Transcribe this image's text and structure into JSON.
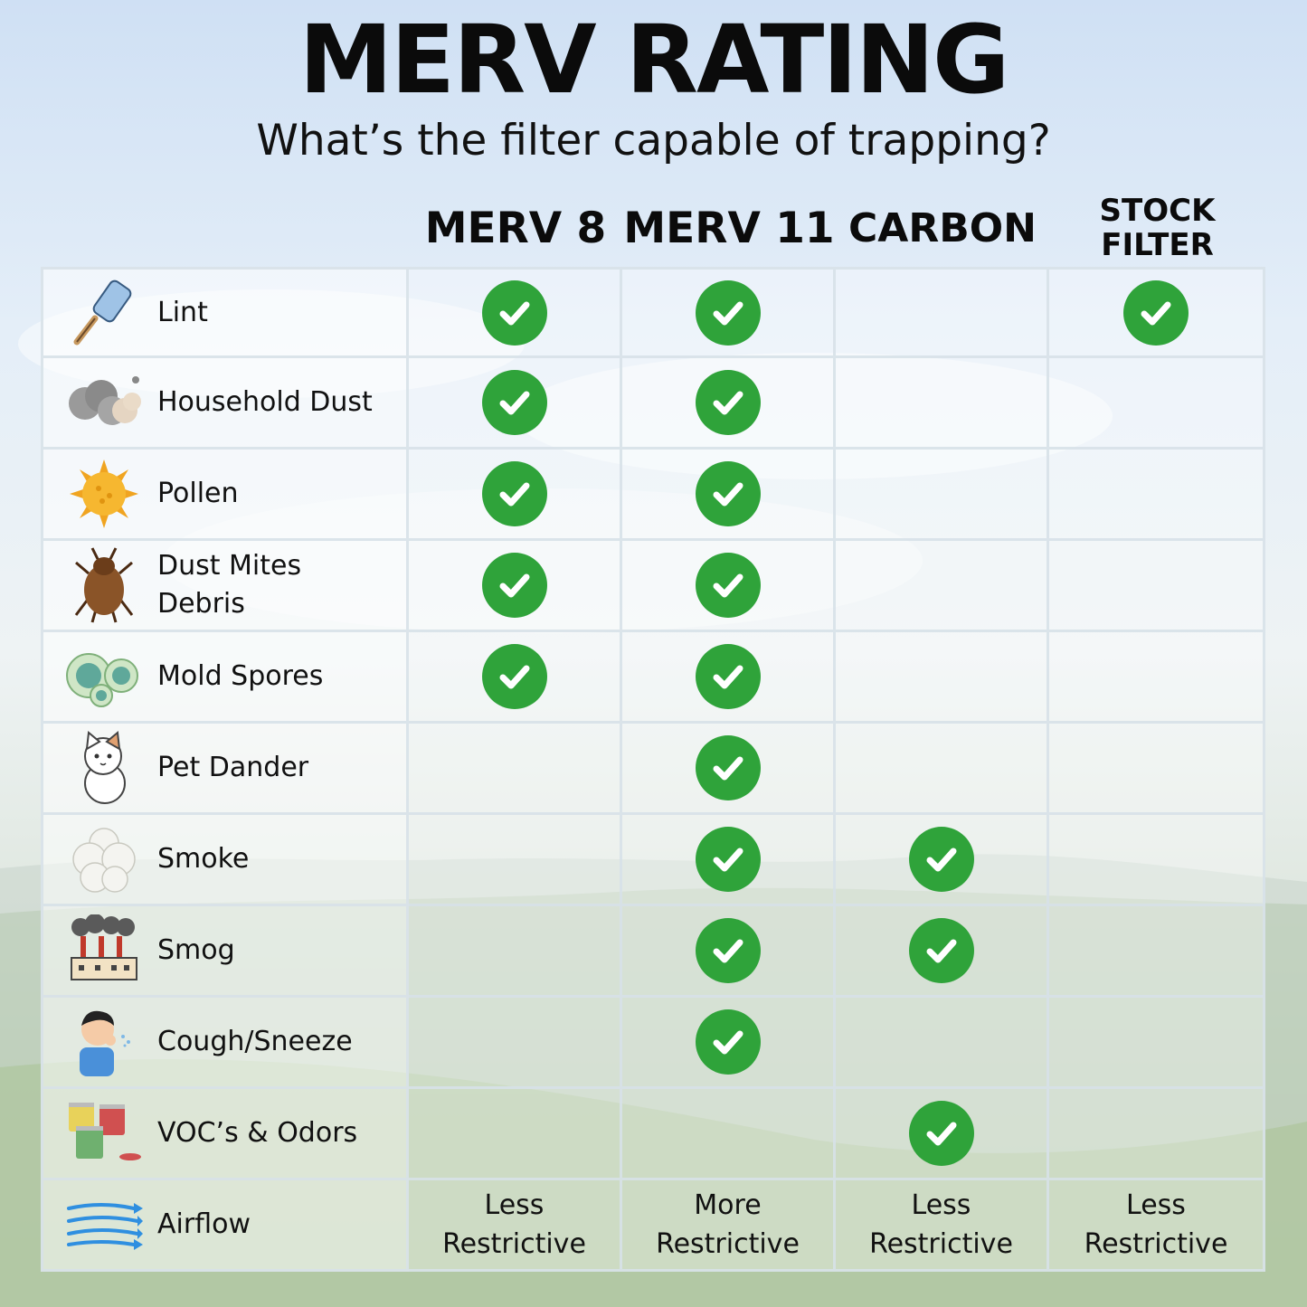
{
  "title": "MERV RATING",
  "subtitle": "What’s the filter capable of trapping?",
  "columns": [
    {
      "label": "MERV 8"
    },
    {
      "label": "MERV 11"
    },
    {
      "label": "CARBON"
    },
    {
      "label_line1": "STOCK",
      "label_line2": "FILTER"
    }
  ],
  "rows": [
    {
      "label": "Lint",
      "icon": "lint-roller-icon",
      "checks": [
        true,
        true,
        false,
        true
      ]
    },
    {
      "label": "Household Dust",
      "icon": "dust-cloud-icon",
      "checks": [
        true,
        true,
        false,
        false
      ]
    },
    {
      "label": "Pollen",
      "icon": "pollen-icon",
      "checks": [
        true,
        true,
        false,
        false
      ]
    },
    {
      "label_line1": "Dust Mites",
      "label_line2": "Debris",
      "icon": "dust-mite-icon",
      "checks": [
        true,
        true,
        false,
        false
      ]
    },
    {
      "label": "Mold Spores",
      "icon": "mold-spores-icon",
      "checks": [
        true,
        true,
        false,
        false
      ]
    },
    {
      "label": "Pet Dander",
      "icon": "cat-icon",
      "checks": [
        false,
        true,
        false,
        false
      ]
    },
    {
      "label": "Smoke",
      "icon": "smoke-icon",
      "checks": [
        false,
        true,
        true,
        false
      ]
    },
    {
      "label": "Smog",
      "icon": "factory-smog-icon",
      "checks": [
        false,
        true,
        true,
        false
      ]
    },
    {
      "label": "Cough/Sneeze",
      "icon": "sneezing-person-icon",
      "checks": [
        false,
        true,
        false,
        false
      ]
    },
    {
      "label": "VOC’s & Odors",
      "icon": "paint-cans-icon",
      "checks": [
        false,
        false,
        true,
        false
      ]
    }
  ],
  "airflow": {
    "label": "Airflow",
    "icon": "airflow-icon",
    "values": [
      {
        "line1": "Less",
        "line2": "Restrictive"
      },
      {
        "line1": "More",
        "line2": "Restrictive"
      },
      {
        "line1": "Less",
        "line2": "Restrictive"
      },
      {
        "line1": "Less",
        "line2": "Restrictive"
      }
    ]
  },
  "colors": {
    "check": "#2fa33a",
    "grid": "#d7e1e8"
  }
}
